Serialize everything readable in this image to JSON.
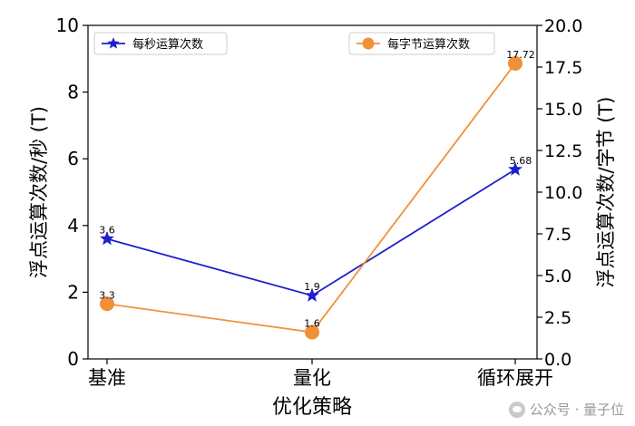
{
  "chart_data": {
    "type": "line",
    "xlabel": "优化策略",
    "ylabel_left": "浮点运算次数/秒 (T)",
    "ylabel_right": "浮点运算次数/字节 (T)",
    "categories": [
      "基准",
      "量化",
      "循环展开"
    ],
    "y_left_range": [
      0,
      10
    ],
    "y_left_ticks": [
      "0",
      "2",
      "4",
      "6",
      "8",
      "10"
    ],
    "y_right_range": [
      0,
      20
    ],
    "y_right_ticks": [
      "0.0",
      "2.5",
      "5.0",
      "7.5",
      "10.0",
      "12.5",
      "15.0",
      "17.5",
      "20.0"
    ],
    "grid": false,
    "series": [
      {
        "name": "每秒运算次数",
        "axis": "left",
        "color": "#1f1fcc",
        "marker": "star",
        "values": [
          3.6,
          1.9,
          5.68
        ],
        "labels": [
          "3.6",
          "1.9",
          "5.68"
        ]
      },
      {
        "name": "每字节运算次数",
        "axis": "right",
        "color": "#f0913a",
        "marker": "circle",
        "values": [
          3.3,
          1.6,
          17.72
        ],
        "labels": [
          "3.3",
          "1.6",
          "17.72"
        ]
      }
    ],
    "legend_left_placement": "top-left",
    "legend_right_placement": "top-right"
  },
  "watermark": "公众号 · 量子位"
}
